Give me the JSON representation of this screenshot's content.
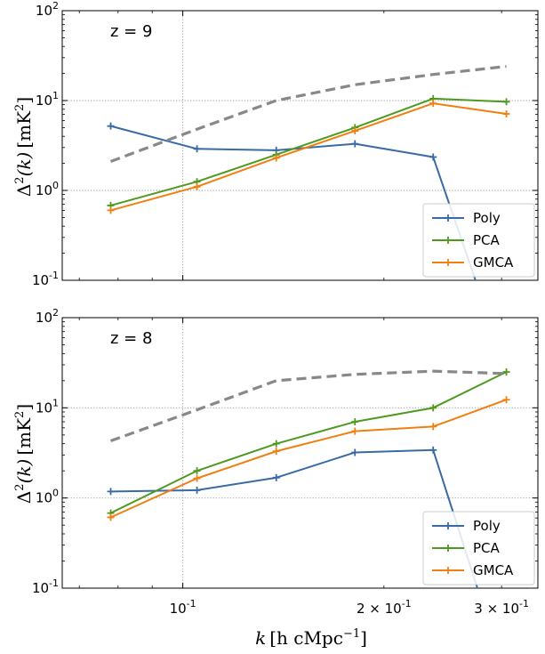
{
  "figure": {
    "xlabel_main": "k",
    "xlabel_unit": "[h cMpc",
    "xlabel_exp": "−1",
    "xlabel_close": "]",
    "ylabel_main": "Δ",
    "ylabel_sup": "2",
    "ylabel_k": "(k)",
    "ylabel_unit": "[mK",
    "ylabel_unit_exp": "2",
    "ylabel_close": "]"
  },
  "chart_data": [
    {
      "type": "line",
      "panel_label": "z = 9",
      "xscale": "log",
      "yscale": "log",
      "xlim": [
        0.066,
        0.34
      ],
      "ylim": [
        0.1,
        100
      ],
      "y_ticks": [
        {
          "base": "10",
          "exp": "-1",
          "value": 0.1
        },
        {
          "base": "10",
          "exp": "0",
          "value": 1
        },
        {
          "base": "10",
          "exp": "1",
          "value": 10
        },
        {
          "base": "10",
          "exp": "2",
          "value": 100
        }
      ],
      "x_ticks": [
        {
          "base": "10",
          "exp": "-1",
          "prefix": "",
          "value": 0.1
        },
        {
          "base": "10",
          "exp": "-1",
          "prefix": "2 × ",
          "value": 0.2
        },
        {
          "base": "10",
          "exp": "-1",
          "prefix": "3 × ",
          "value": 0.3
        }
      ],
      "show_x_tick_labels": false,
      "grid": "dotted",
      "legend_position": "lower right",
      "x": [
        0.078,
        0.105,
        0.138,
        0.181,
        0.237,
        0.305
      ],
      "series": [
        {
          "name": "Poly",
          "color": "#3a6aa5",
          "style": "solid",
          "markers": true,
          "in_legend": true,
          "x": [
            0.078,
            0.105,
            0.138,
            0.181,
            0.237,
            0.305
          ],
          "values": [
            5.2,
            2.9,
            2.8,
            3.3,
            2.35,
            0.01
          ]
        },
        {
          "name": "PCA",
          "color": "#4e9a1f",
          "style": "solid",
          "markers": true,
          "in_legend": true,
          "x": [
            0.078,
            0.105,
            0.138,
            0.181,
            0.237,
            0.305
          ],
          "values": [
            0.68,
            1.25,
            2.5,
            5.0,
            10.5,
            9.7
          ]
        },
        {
          "name": "GMCA",
          "color": "#f07f10",
          "style": "solid",
          "markers": true,
          "in_legend": true,
          "x": [
            0.078,
            0.105,
            0.138,
            0.181,
            0.237,
            0.305
          ],
          "values": [
            0.6,
            1.1,
            2.3,
            4.6,
            9.3,
            7.1
          ]
        },
        {
          "name": "",
          "color": "#888888",
          "style": "dashed",
          "markers": false,
          "in_legend": false,
          "x": [
            0.078,
            0.105,
            0.138,
            0.181,
            0.237,
            0.305
          ],
          "values": [
            2.1,
            4.8,
            10.0,
            15.0,
            19.5,
            24.0
          ]
        }
      ]
    },
    {
      "type": "line",
      "panel_label": "z = 8",
      "xscale": "log",
      "yscale": "log",
      "xlim": [
        0.066,
        0.34
      ],
      "ylim": [
        0.1,
        100
      ],
      "y_ticks": [
        {
          "base": "10",
          "exp": "-1",
          "value": 0.1
        },
        {
          "base": "10",
          "exp": "0",
          "value": 1
        },
        {
          "base": "10",
          "exp": "1",
          "value": 10
        },
        {
          "base": "10",
          "exp": "2",
          "value": 100
        }
      ],
      "x_ticks": [
        {
          "base": "10",
          "exp": "-1",
          "prefix": "",
          "value": 0.1
        },
        {
          "base": "10",
          "exp": "-1",
          "prefix": "2 × ",
          "value": 0.2
        },
        {
          "base": "10",
          "exp": "-1",
          "prefix": "3 × ",
          "value": 0.3
        }
      ],
      "show_x_tick_labels": true,
      "grid": "dotted",
      "legend_position": "lower right",
      "x": [
        0.078,
        0.105,
        0.138,
        0.181,
        0.237,
        0.305
      ],
      "series": [
        {
          "name": "Poly",
          "color": "#3a6aa5",
          "style": "solid",
          "markers": true,
          "in_legend": true,
          "x": [
            0.078,
            0.105,
            0.138,
            0.181,
            0.237,
            0.305
          ],
          "values": [
            1.18,
            1.22,
            1.68,
            3.2,
            3.4,
            0.01
          ]
        },
        {
          "name": "PCA",
          "color": "#4e9a1f",
          "style": "solid",
          "markers": true,
          "in_legend": true,
          "x": [
            0.078,
            0.105,
            0.138,
            0.181,
            0.237,
            0.305
          ],
          "values": [
            0.68,
            2.0,
            4.0,
            7.0,
            10.0,
            25.0
          ]
        },
        {
          "name": "GMCA",
          "color": "#f07f10",
          "style": "solid",
          "markers": true,
          "in_legend": true,
          "x": [
            0.078,
            0.105,
            0.138,
            0.181,
            0.237,
            0.305
          ],
          "values": [
            0.61,
            1.65,
            3.3,
            5.5,
            6.2,
            12.3
          ]
        },
        {
          "name": "",
          "color": "#888888",
          "style": "dashed",
          "markers": false,
          "in_legend": false,
          "x": [
            0.078,
            0.105,
            0.138,
            0.181,
            0.237,
            0.305
          ],
          "values": [
            4.3,
            9.5,
            20.0,
            23.5,
            25.5,
            24.0
          ]
        }
      ]
    }
  ]
}
